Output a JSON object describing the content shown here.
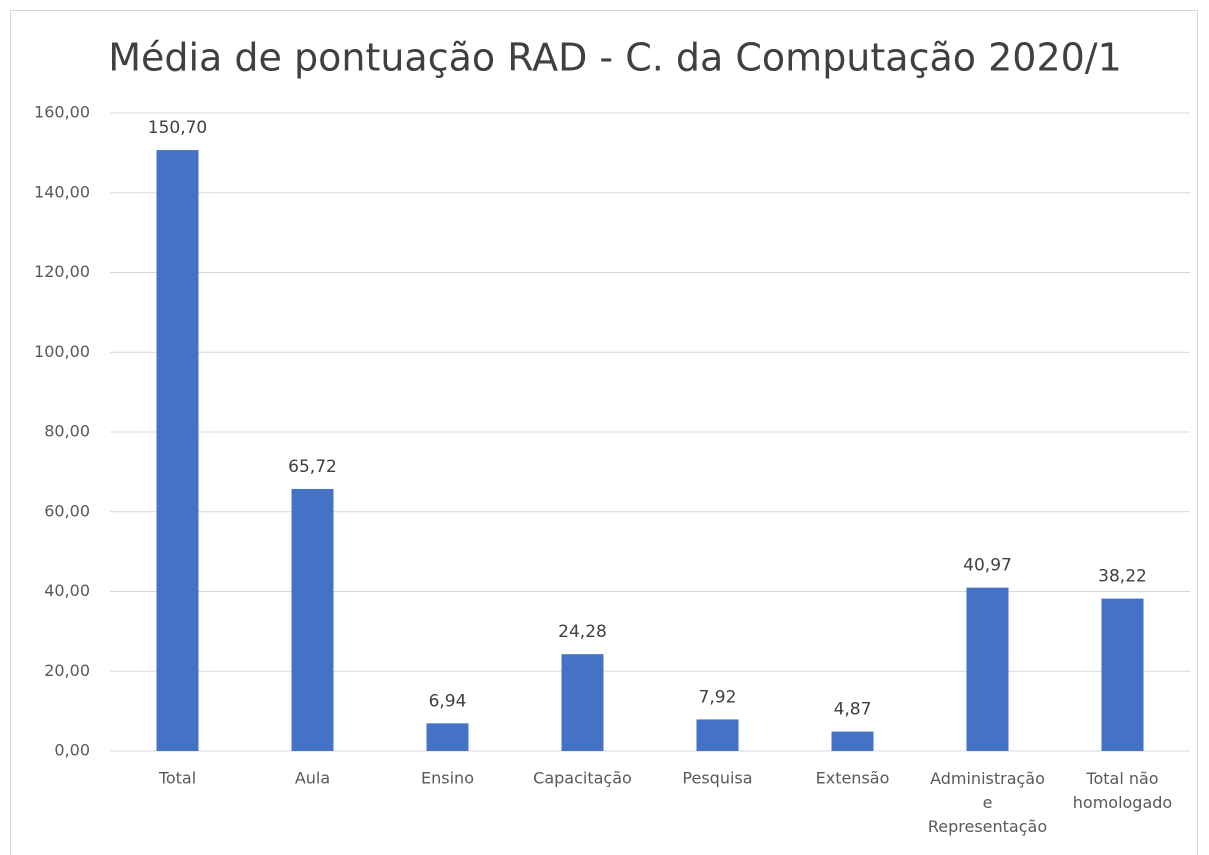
{
  "chart_data": {
    "type": "bar",
    "title": "Média de pontuação RAD - C. da Computação 2020/1",
    "categories": [
      "Total",
      "Aula",
      "Ensino",
      "Capacitação",
      "Pesquisa",
      "Extensão",
      "Administração e Representação",
      "Total não homologado"
    ],
    "values": [
      150.7,
      65.72,
      6.94,
      24.28,
      7.92,
      4.87,
      40.97,
      38.22
    ],
    "value_labels": [
      "150,70",
      "65,72",
      "6,94",
      "24,28",
      "7,92",
      "4,87",
      "40,97",
      "38,22"
    ],
    "color": "#4472c4",
    "ylim": [
      0,
      160
    ],
    "yticks": [
      {
        "value": 0,
        "label": "0,00"
      },
      {
        "value": 20,
        "label": "20,00"
      },
      {
        "value": 40,
        "label": "40,00"
      },
      {
        "value": 60,
        "label": "60,00"
      },
      {
        "value": 80,
        "label": "80,00"
      },
      {
        "value": 100,
        "label": "100,00"
      },
      {
        "value": 120,
        "label": "120,00"
      },
      {
        "value": 140,
        "label": "140,00"
      },
      {
        "value": 160,
        "label": "160,00"
      }
    ],
    "grid": true
  }
}
